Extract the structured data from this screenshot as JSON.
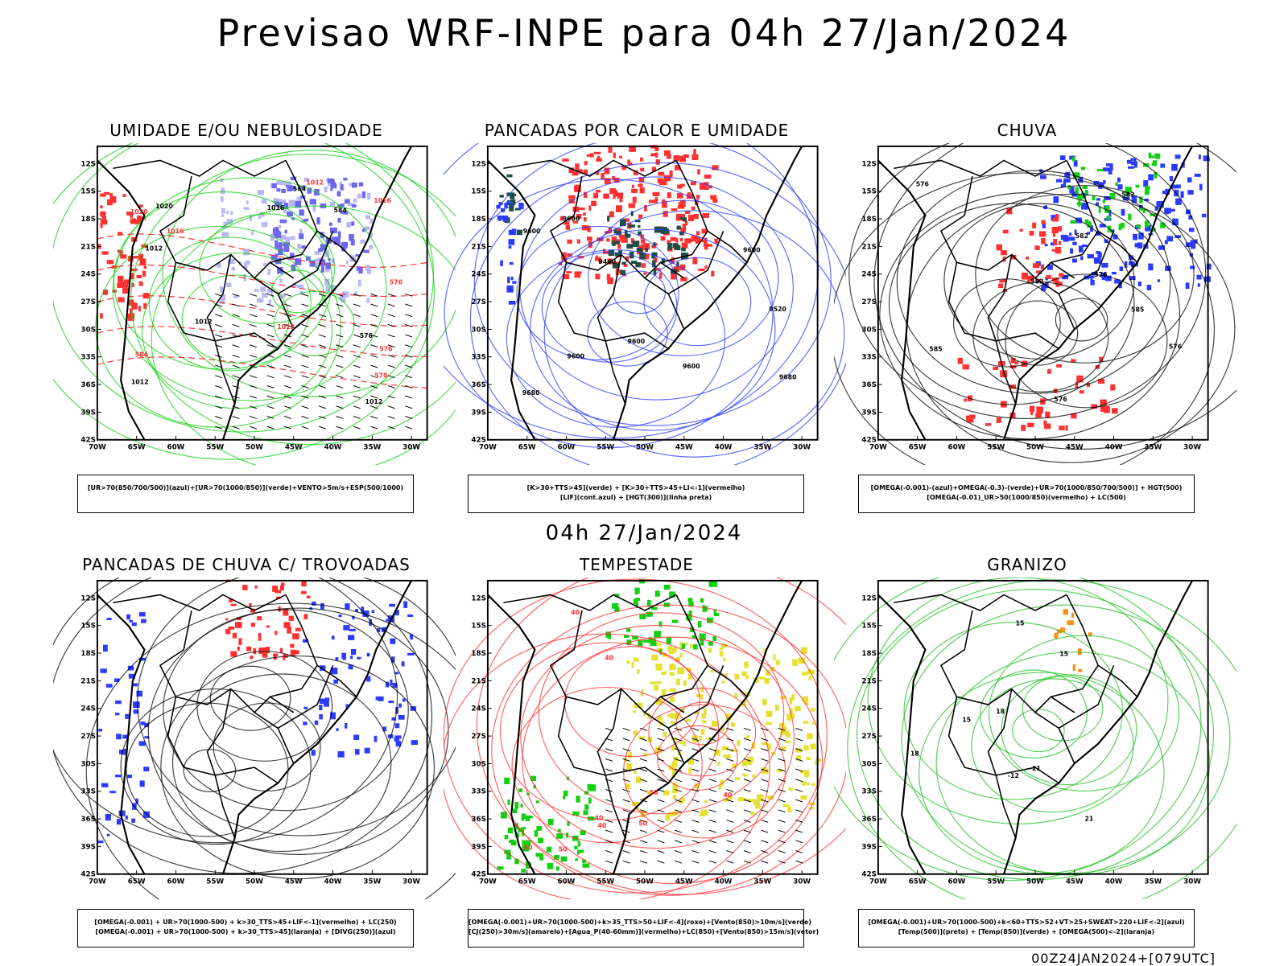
{
  "title": "Previsao WRF-INPE  para 04h 27/Jan/2024",
  "subtitle": "04h 27/Jan/2024",
  "footer": "00Z24JAN2024+[079UTC]",
  "axes": {
    "lat_labels": [
      "12S",
      "15S",
      "18S",
      "21S",
      "24S",
      "27S",
      "30S",
      "33S",
      "36S",
      "39S",
      "42S"
    ],
    "lon_labels": [
      "70W",
      "65W",
      "60W",
      "55W",
      "50W",
      "45W",
      "40W",
      "35W",
      "30W"
    ]
  },
  "colors": {
    "blue": "#2a3bff",
    "lavender": "#b8b8f4",
    "violet": "#6e66f0",
    "green": "#10d010",
    "red": "#ff3030",
    "darkgreen": "#1e4e46",
    "yellow": "#e6e030",
    "orange": "#ff8c1a",
    "bright_green": "#20c020"
  },
  "panels": [
    {
      "id": "umidade",
      "title": "UMIDADE E/OU NEBULOSIDADE",
      "legend": [
        "[UR>70(850/700/500)](azul)+[UR>70(1000/850)](verde)+VENTO>5m/s+ESP(500/1000)"
      ],
      "labels": [
        "1012",
        "1012",
        "1012",
        "1012",
        "1012",
        "1016",
        "1016",
        "1020",
        "1020",
        "1016",
        "1012",
        "576",
        "576",
        "576",
        "584",
        "584",
        "564",
        "570"
      ]
    },
    {
      "id": "pancadas_calor",
      "title": "PANCADAS POR CALOR E UMIDADE",
      "legend": [
        "[K>30+TTS>45](verde) + [K>30+TTS>45+LI<-1](vermelho)",
        "[LIF](cont.azul) + [HGT(300)](linha preta)"
      ],
      "labels": [
        "9600",
        "9600",
        "9520",
        "9600",
        "9440",
        "9600",
        "9680",
        "9680",
        "9600",
        "9600"
      ]
    },
    {
      "id": "chuva",
      "title": "CHUVA",
      "legend": [
        "[OMEGA(-0.001)-(azul)+OMEGA(-0.3)-(verde)+UR>70(1000/850/700/500)] + HGT(500)",
        "[OMEGA(-0.01)_UR>50(1000/850)(vermelho) + LC(500)"
      ],
      "labels": [
        "582",
        "576",
        "582",
        "576",
        "585",
        "576",
        "582",
        "585",
        "576"
      ]
    },
    {
      "id": "pancadas_trovoadas",
      "title": "PANCADAS DE CHUVA C/ TROVOADAS",
      "legend": [
        "[OMEGA(-0.001) + UR>70(1000-500) + k>30_TTS>45+LIF<-1](vermelho) + LC(250)",
        "[OMEGA(-0.001) + UR>70(1000-500) + k>30_TTS>45](laranja) + [DIVG(250)](azul)"
      ],
      "labels": []
    },
    {
      "id": "tempestade",
      "title": "TEMPESTADE",
      "legend": [
        "[OMEGA(-0.001)+UR>70(1000-500)+k>35_TTS>50+LIF<-4](roxo)+[Vento(850)>10m/s](verde)",
        "[CJ(250)>30m/s](amarelo)+[Agua_P(40-60mm)](vermelho)+LC(850)+[Vento(850)>15m/s](vetor)"
      ],
      "labels": [
        "40",
        "50",
        "50",
        "40",
        "40",
        "50",
        "40",
        "40",
        "50"
      ]
    },
    {
      "id": "granizo",
      "title": "GRANIZO",
      "legend": [
        "[OMEGA(-0.001)+UR>70(1000-500)+k<60+TTS>52+VT>25+SWEAT>220+LIF<-2](azul)",
        "[Temp(500)](preto) + [Temp(850)](verde) + [OMEGA(500)<-2](laranja)"
      ],
      "labels": [
        "15",
        "18",
        "21",
        "15",
        "18",
        "21",
        "-12",
        "15"
      ]
    }
  ]
}
